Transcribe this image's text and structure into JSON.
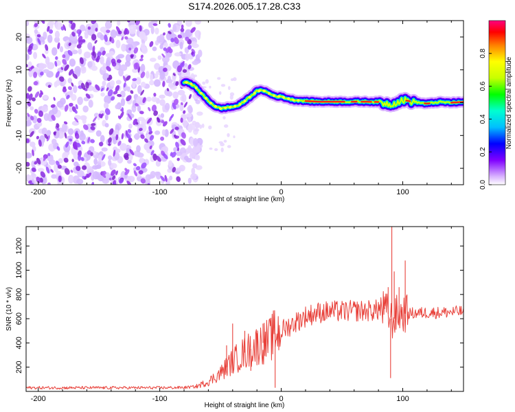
{
  "title": "S174.2026.005.17.28.C33",
  "chart_data": [
    {
      "type": "heatmap",
      "name": "spectrogram",
      "xlabel": "Height of straight line (km)",
      "ylabel": "Frequency (Hz)",
      "xlim": [
        -210,
        150
      ],
      "ylim": [
        -25,
        25
      ],
      "xticks": [
        -200,
        -100,
        0,
        100
      ],
      "xtick_labels": [
        "-200",
        "-100",
        "0",
        "100"
      ],
      "yticks": [
        -20,
        -10,
        0,
        10,
        20
      ],
      "ytick_labels": [
        "-20",
        "-10",
        "0",
        "10",
        "20"
      ],
      "noise_region_x": [
        -210,
        -72
      ],
      "ridge_x": [
        -80,
        -75,
        -70,
        -65,
        -60,
        -55,
        -50,
        -45,
        -40,
        -35,
        -30,
        -25,
        -20,
        -15,
        -10,
        -5,
        0,
        10,
        20,
        30,
        40,
        50,
        60,
        70,
        80,
        90,
        100,
        110,
        120,
        130,
        140,
        150
      ],
      "ridge_y": [
        6.2,
        6.0,
        4.5,
        2.5,
        0.5,
        -1.0,
        -1.8,
        -1.5,
        -1.3,
        -0.8,
        0.5,
        2.0,
        3.5,
        3.8,
        2.8,
        2.0,
        1.8,
        0.8,
        0.5,
        0.3,
        0.3,
        0.3,
        0.3,
        0.3,
        0.2,
        -0.5,
        0.8,
        0.2,
        -0.3,
        0.2,
        0.0,
        0.2
      ],
      "colorbar": {
        "label": "Normalized spectral amplitude",
        "ticks": [
          0.0,
          0.2,
          0.4,
          0.6,
          0.8
        ],
        "tick_labels": [
          "0.0",
          "0.2",
          "0.4",
          "0.6",
          "0.8"
        ],
        "range": [
          0,
          1
        ]
      }
    },
    {
      "type": "line",
      "name": "snr",
      "xlabel": "Height of straight line (km)",
      "ylabel": "SNR (10 * v/v)",
      "xlim": [
        -210,
        150
      ],
      "ylim": [
        0,
        1360
      ],
      "xticks": [
        -200,
        -100,
        0,
        100
      ],
      "xtick_labels": [
        "-200",
        "-100",
        "0",
        "100"
      ],
      "yticks": [
        200,
        400,
        600,
        800,
        1000,
        1200
      ],
      "ytick_labels": [
        "200",
        "400",
        "600",
        "800",
        "1000",
        "1200"
      ],
      "color": "#e8413a",
      "series": [
        {
          "name": "SNR",
          "x": [
            -210,
            -150,
            -100,
            -80,
            -70,
            -60,
            -50,
            -40,
            -30,
            -20,
            -10,
            -5,
            0,
            10,
            20,
            30,
            40,
            50,
            60,
            70,
            80,
            85,
            88,
            90,
            92,
            95,
            100,
            110,
            120,
            130,
            140,
            150
          ],
          "y_base": [
            30,
            30,
            30,
            32,
            40,
            80,
            150,
            250,
            320,
            380,
            420,
            480,
            500,
            560,
            620,
            650,
            660,
            660,
            665,
            665,
            670,
            680,
            640,
            600,
            580,
            640,
            640,
            645,
            650,
            650,
            655,
            660
          ],
          "spikes": [
            {
              "x": -40,
              "y": 560
            },
            {
              "x": -45,
              "y": 380
            },
            {
              "x": -30,
              "y": 500
            },
            {
              "x": -25,
              "y": 170
            },
            {
              "x": -20,
              "y": 480
            },
            {
              "x": -15,
              "y": 560
            },
            {
              "x": -5,
              "y": 30
            },
            {
              "x": -8,
              "y": 470
            },
            {
              "x": 88,
              "y": 860
            },
            {
              "x": 91,
              "y": 1360
            },
            {
              "x": 90,
              "y": 110
            },
            {
              "x": 93,
              "y": 990
            },
            {
              "x": 97,
              "y": 860
            },
            {
              "x": 102,
              "y": 1080
            },
            {
              "x": 85,
              "y": 700
            }
          ]
        }
      ]
    }
  ]
}
